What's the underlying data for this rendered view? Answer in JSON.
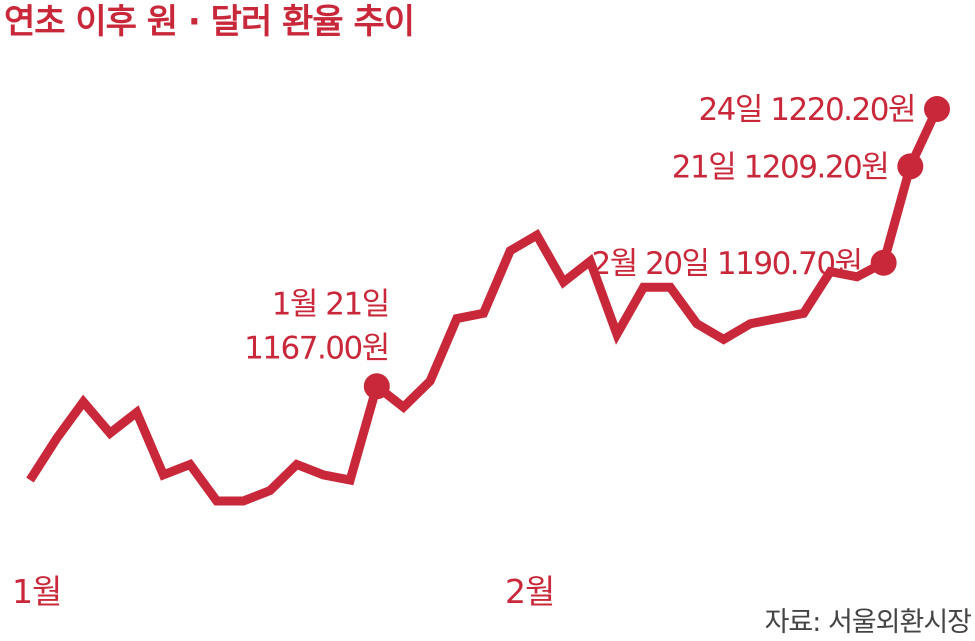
{
  "colors": {
    "accent": "#c8283a",
    "source_text": "#444444"
  },
  "chart_data": {
    "type": "line",
    "title": "연초 이후 원 · 달러 환율 추이",
    "xlabel": "",
    "ylabel": "",
    "grid": false,
    "legend": "none",
    "ylim": [
      1140,
      1225
    ],
    "x_tick_labels": [
      "1월",
      "2월"
    ],
    "source": "자료: 서울외환시장",
    "series": [
      {
        "values": [
          1149,
          1157,
          1164,
          1158,
          1162,
          1150,
          1152,
          1145,
          1145,
          1147,
          1152,
          1150,
          1149,
          1167,
          1163,
          1168,
          1180,
          1181,
          1193,
          1196,
          1187,
          1191,
          1177,
          1186,
          1186,
          1179,
          1176,
          1179,
          1180,
          1181,
          1189,
          1188,
          1190.7,
          1209.2,
          1220.2
        ]
      }
    ],
    "annotations": [
      {
        "point_index": 13,
        "lines": [
          "1월 21일",
          "1167.00원"
        ]
      },
      {
        "point_index": 32,
        "lines": [
          "2월  20일 1190.70원"
        ]
      },
      {
        "point_index": 33,
        "lines": [
          "21일 1209.20원"
        ]
      },
      {
        "point_index": 34,
        "lines": [
          "24일 1220.20원"
        ]
      }
    ]
  }
}
